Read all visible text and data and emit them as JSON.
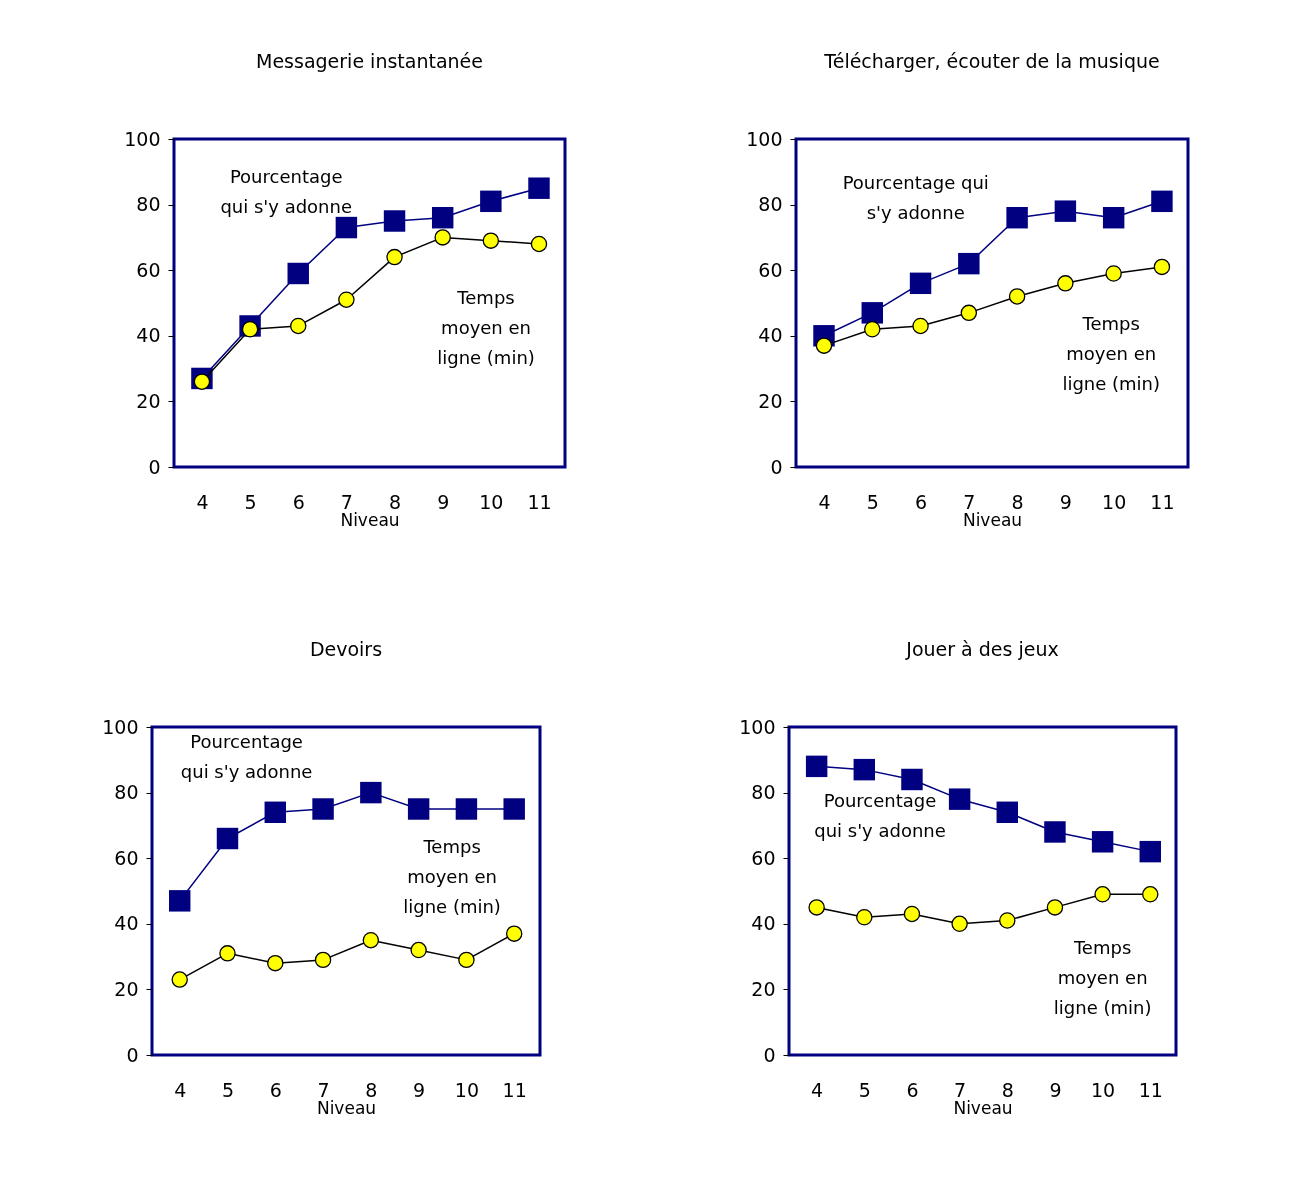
{
  "chart_data": [
    {
      "type": "line",
      "title": "Messagerie instantanée",
      "xlabel": "Niveau",
      "categories": [
        "4",
        "5",
        "6",
        "7",
        "8",
        "9",
        "10",
        "11"
      ],
      "ylim": [
        0,
        100
      ],
      "yticks": [
        0,
        20,
        40,
        60,
        80,
        100
      ],
      "series": [
        {
          "name": "Pourcentage qui s'y adonne",
          "color": "#000080",
          "marker": "square",
          "values": [
            27,
            43,
            59,
            73,
            75,
            76,
            81,
            85
          ]
        },
        {
          "name": "Temps moyen en ligne (min)",
          "color": "#ffff00",
          "marker": "circle",
          "values": [
            26,
            42,
            43,
            51,
            64,
            70,
            69,
            68
          ]
        }
      ]
    },
    {
      "type": "line",
      "title": "Télécharger, écouter de la musique",
      "xlabel": "Niveau",
      "categories": [
        "4",
        "5",
        "6",
        "7",
        "8",
        "9",
        "10",
        "11"
      ],
      "ylim": [
        0,
        100
      ],
      "yticks": [
        0,
        20,
        40,
        60,
        80,
        100
      ],
      "series": [
        {
          "name": "Pourcentage qui s'y adonne",
          "color": "#000080",
          "marker": "square",
          "values": [
            40,
            47,
            56,
            62,
            76,
            78,
            76,
            81
          ]
        },
        {
          "name": "Temps moyen en ligne (min)",
          "color": "#ffff00",
          "marker": "circle",
          "values": [
            37,
            42,
            43,
            47,
            52,
            56,
            59,
            61
          ]
        }
      ]
    },
    {
      "type": "line",
      "title": "Devoirs",
      "xlabel": "Niveau",
      "categories": [
        "4",
        "5",
        "6",
        "7",
        "8",
        "9",
        "10",
        "11"
      ],
      "ylim": [
        0,
        100
      ],
      "yticks": [
        0,
        20,
        40,
        60,
        80,
        100
      ],
      "series": [
        {
          "name": "Pourcentage qui s'y adonne",
          "color": "#000080",
          "marker": "square",
          "values": [
            47,
            66,
            74,
            75,
            80,
            75,
            75,
            75
          ]
        },
        {
          "name": "Temps moyen en ligne (min)",
          "color": "#ffff00",
          "marker": "circle",
          "values": [
            23,
            31,
            28,
            29,
            35,
            32,
            29,
            37
          ]
        }
      ]
    },
    {
      "type": "line",
      "title": "Jouer à des jeux",
      "xlabel": "Niveau",
      "categories": [
        "4",
        "5",
        "6",
        "7",
        "8",
        "9",
        "10",
        "11"
      ],
      "ylim": [
        0,
        100
      ],
      "yticks": [
        0,
        20,
        40,
        60,
        80,
        100
      ],
      "series": [
        {
          "name": "Pourcentage qui s'y adonne",
          "color": "#000080",
          "marker": "square",
          "values": [
            88,
            87,
            84,
            78,
            74,
            68,
            65,
            62
          ]
        },
        {
          "name": "Temps moyen en ligne (min)",
          "color": "#ffff00",
          "marker": "circle",
          "values": [
            45,
            42,
            43,
            40,
            41,
            45,
            49,
            49
          ]
        }
      ]
    }
  ]
}
